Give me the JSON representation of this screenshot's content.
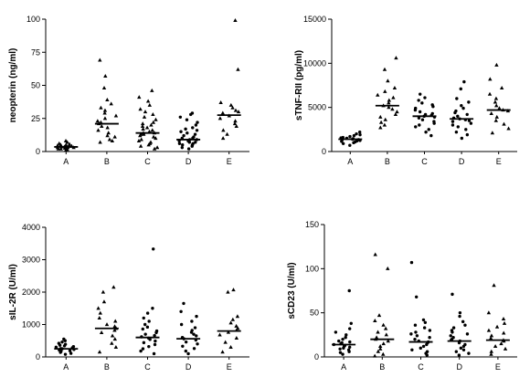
{
  "chart_data": [
    {
      "type": "scatter",
      "ylabel": "neopterin (ng/ml)",
      "ylim": [
        0,
        100
      ],
      "yticks": [
        0,
        25,
        50,
        75,
        100
      ],
      "categories": [
        "A",
        "B",
        "C",
        "D",
        "E"
      ],
      "medians": [
        3.5,
        21,
        14,
        9,
        27.5
      ],
      "points": [
        [
          1,
          1.5,
          2,
          2,
          2.5,
          2.5,
          3,
          3,
          3,
          3.5,
          3.5,
          4,
          4,
          4.5,
          5,
          5,
          5.5,
          6,
          7,
          8
        ],
        [
          7,
          8,
          9,
          11,
          12,
          14,
          16,
          18,
          19,
          21,
          22,
          23,
          25,
          27,
          29,
          31,
          33,
          36,
          39,
          48,
          57,
          69
        ],
        [
          2,
          3,
          4,
          5,
          6,
          7,
          8,
          9,
          10,
          11,
          12,
          13,
          13,
          14,
          14,
          15,
          16,
          17,
          18,
          19,
          20,
          21,
          22,
          24,
          26,
          28,
          30,
          32,
          35,
          38,
          41,
          46
        ],
        [
          2,
          3,
          4,
          5,
          5,
          6,
          6,
          7,
          7,
          8,
          8,
          9,
          9,
          10,
          10,
          11,
          12,
          13,
          14,
          15,
          16,
          17,
          18,
          20,
          22,
          24,
          26,
          28,
          29
        ],
        [
          10,
          13,
          16,
          19,
          21,
          23,
          25,
          27,
          28,
          29,
          30,
          31,
          33,
          35,
          37,
          62,
          99
        ]
      ]
    },
    {
      "type": "scatter",
      "ylabel": "sTNF-RII (pg/ml)",
      "ylim": [
        0,
        15000
      ],
      "yticks": [
        0,
        5000,
        10000,
        15000
      ],
      "categories": [
        "A",
        "B",
        "C",
        "D",
        "E"
      ],
      "medians": [
        1400,
        5200,
        4000,
        3700,
        4700
      ],
      "points": [
        [
          700,
          900,
          1000,
          1100,
          1150,
          1200,
          1250,
          1300,
          1350,
          1400,
          1450,
          1500,
          1550,
          1600,
          1700,
          1800,
          1900,
          2000,
          2200
        ],
        [
          2700,
          3000,
          3300,
          3600,
          3900,
          4200,
          4500,
          4800,
          5000,
          5200,
          5500,
          5800,
          6100,
          6400,
          6800,
          7200,
          8000,
          9300,
          10600
        ],
        [
          1800,
          2200,
          2500,
          2800,
          3000,
          3200,
          3400,
          3600,
          3800,
          3900,
          4000,
          4100,
          4200,
          4300,
          4500,
          4700,
          4900,
          5100,
          5300,
          5500,
          5800,
          6100,
          6500
        ],
        [
          1500,
          1900,
          2200,
          2500,
          2800,
          3000,
          3200,
          3400,
          3500,
          3600,
          3700,
          3800,
          4000,
          4200,
          4400,
          4600,
          4900,
          5200,
          5600,
          6000,
          7100,
          7900
        ],
        [
          2100,
          2600,
          3100,
          3500,
          3900,
          4300,
          4600,
          4700,
          4900,
          5200,
          5600,
          6000,
          6500,
          7200,
          8200,
          9800
        ]
      ]
    },
    {
      "type": "scatter",
      "ylabel": "sIL-2R (U/ml)",
      "ylim": [
        0,
        4000
      ],
      "yticks": [
        0,
        1000,
        2000,
        3000,
        4000
      ],
      "categories": [
        "A",
        "B",
        "C",
        "D",
        "E"
      ],
      "medians": [
        250,
        880,
        600,
        560,
        800
      ],
      "points": [
        [
          80,
          110,
          140,
          170,
          190,
          210,
          230,
          250,
          260,
          280,
          300,
          320,
          340,
          360,
          390,
          420,
          460,
          500,
          550
        ],
        [
          150,
          300,
          420,
          550,
          650,
          750,
          820,
          880,
          940,
          1000,
          1100,
          1200,
          1350,
          1500,
          1700,
          2000,
          2150
        ],
        [
          100,
          180,
          250,
          320,
          380,
          440,
          490,
          540,
          580,
          620,
          660,
          700,
          750,
          800,
          860,
          920,
          1000,
          1100,
          1200,
          1350,
          1500,
          3330
        ],
        [
          100,
          180,
          260,
          330,
          400,
          460,
          520,
          560,
          600,
          650,
          700,
          760,
          820,
          900,
          1000,
          1100,
          1250,
          1400,
          1650
        ],
        [
          150,
          300,
          450,
          580,
          680,
          760,
          820,
          880,
          950,
          1050,
          1150,
          1250,
          2000,
          2070
        ]
      ]
    },
    {
      "type": "scatter",
      "ylabel": "sCD23 (U/ml)",
      "ylim": [
        0,
        150
      ],
      "yticks": [
        0,
        50,
        100,
        150
      ],
      "categories": [
        "A",
        "B",
        "C",
        "D",
        "E"
      ],
      "medians": [
        14,
        20,
        17,
        18,
        19
      ],
      "points": [
        [
          3,
          5,
          6,
          8,
          9,
          10,
          11,
          12,
          13,
          14,
          15,
          16,
          17,
          18,
          20,
          22,
          25,
          28,
          32,
          38,
          75
        ],
        [
          1,
          3,
          6,
          9,
          12,
          15,
          18,
          20,
          22,
          25,
          28,
          32,
          36,
          41,
          47,
          100,
          116
        ],
        [
          2,
          4,
          6,
          8,
          10,
          12,
          14,
          16,
          17,
          18,
          20,
          22,
          24,
          26,
          28,
          30,
          33,
          36,
          39,
          42,
          68,
          107
        ],
        [
          2,
          4,
          6,
          8,
          10,
          12,
          14,
          16,
          18,
          19,
          20,
          22,
          24,
          26,
          28,
          30,
          33,
          36,
          40,
          46,
          50,
          71
        ],
        [
          3,
          6,
          9,
          12,
          15,
          18,
          19,
          21,
          24,
          27,
          30,
          34,
          38,
          43,
          50,
          81
        ]
      ]
    }
  ]
}
